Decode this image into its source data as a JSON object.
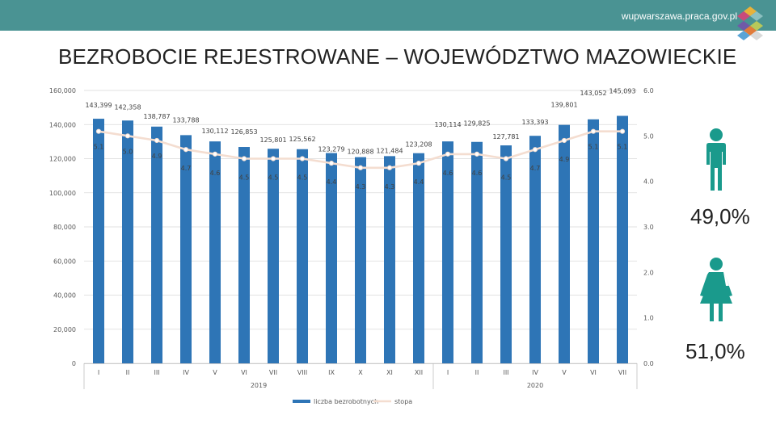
{
  "header": {
    "site": "wupwarszawa.praca.gov.pl",
    "title": "BEZROBOCIE REJESTROWANE – WOJEWÓDZTWO MAZOWIECKIE",
    "accent_color": "#4a9393"
  },
  "gender": {
    "male_icon": "male-person-icon",
    "female_icon": "female-person-icon",
    "male_share": "49,0%",
    "female_share": "51,0%",
    "icon_color": "#1a9a8c"
  },
  "chart_data": {
    "type": "bar",
    "categories": [
      "I",
      "II",
      "III",
      "IV",
      "V",
      "VI",
      "VII",
      "VIII",
      "IX",
      "X",
      "XI",
      "XII",
      "I",
      "II",
      "III",
      "IV",
      "V",
      "VI",
      "VII"
    ],
    "groups": [
      {
        "label": "2019",
        "from": 0,
        "to": 11
      },
      {
        "label": "2020",
        "from": 12,
        "to": 18
      }
    ],
    "series": [
      {
        "name": "liczba bezrobotnych",
        "kind": "bar",
        "axis": "left",
        "color": "#2e75b6",
        "values": [
          143399,
          142358,
          138787,
          133788,
          130112,
          126853,
          125801,
          125562,
          123279,
          120888,
          121484,
          123208,
          130114,
          129825,
          127781,
          133393,
          139801,
          143052,
          145093
        ],
        "labels": [
          "143,399",
          "142,358",
          "138,787",
          "133,788",
          "130,112",
          "126,853",
          "125,801",
          "125,562",
          "123,279",
          "120,888",
          "121,484",
          "123,208",
          "130,114",
          "129,825",
          "127,781",
          "133,393",
          "139,801",
          "143,052",
          "145,093"
        ]
      },
      {
        "name": "stopa",
        "kind": "line",
        "axis": "right",
        "color": "#f4ddd0",
        "values": [
          5.1,
          5.0,
          4.9,
          4.7,
          4.6,
          4.5,
          4.5,
          4.5,
          4.4,
          4.3,
          4.3,
          4.4,
          4.6,
          4.6,
          4.5,
          4.7,
          4.9,
          5.1,
          5.1
        ],
        "labels": [
          "5.1",
          "5.0",
          "4.9",
          "4.7",
          "4.6",
          "4.5",
          "4.5",
          "4.5",
          "4.4",
          "4.3",
          "4.3",
          "4.4",
          "4.6",
          "4.6",
          "4.5",
          "4.7",
          "4.9",
          "5.1",
          "5.1"
        ]
      }
    ],
    "y_left": {
      "min": 0,
      "max": 160000,
      "ticks": [
        "0",
        "20,000",
        "40,000",
        "60,000",
        "80,000",
        "100,000",
        "120,000",
        "140,000",
        "160,000"
      ]
    },
    "y_right": {
      "min": 0,
      "max": 6,
      "ticks": [
        "0.0",
        "1.0",
        "2.0",
        "3.0",
        "4.0",
        "5.0",
        "6.0"
      ]
    },
    "grid": true,
    "legend_position": "bottom"
  }
}
